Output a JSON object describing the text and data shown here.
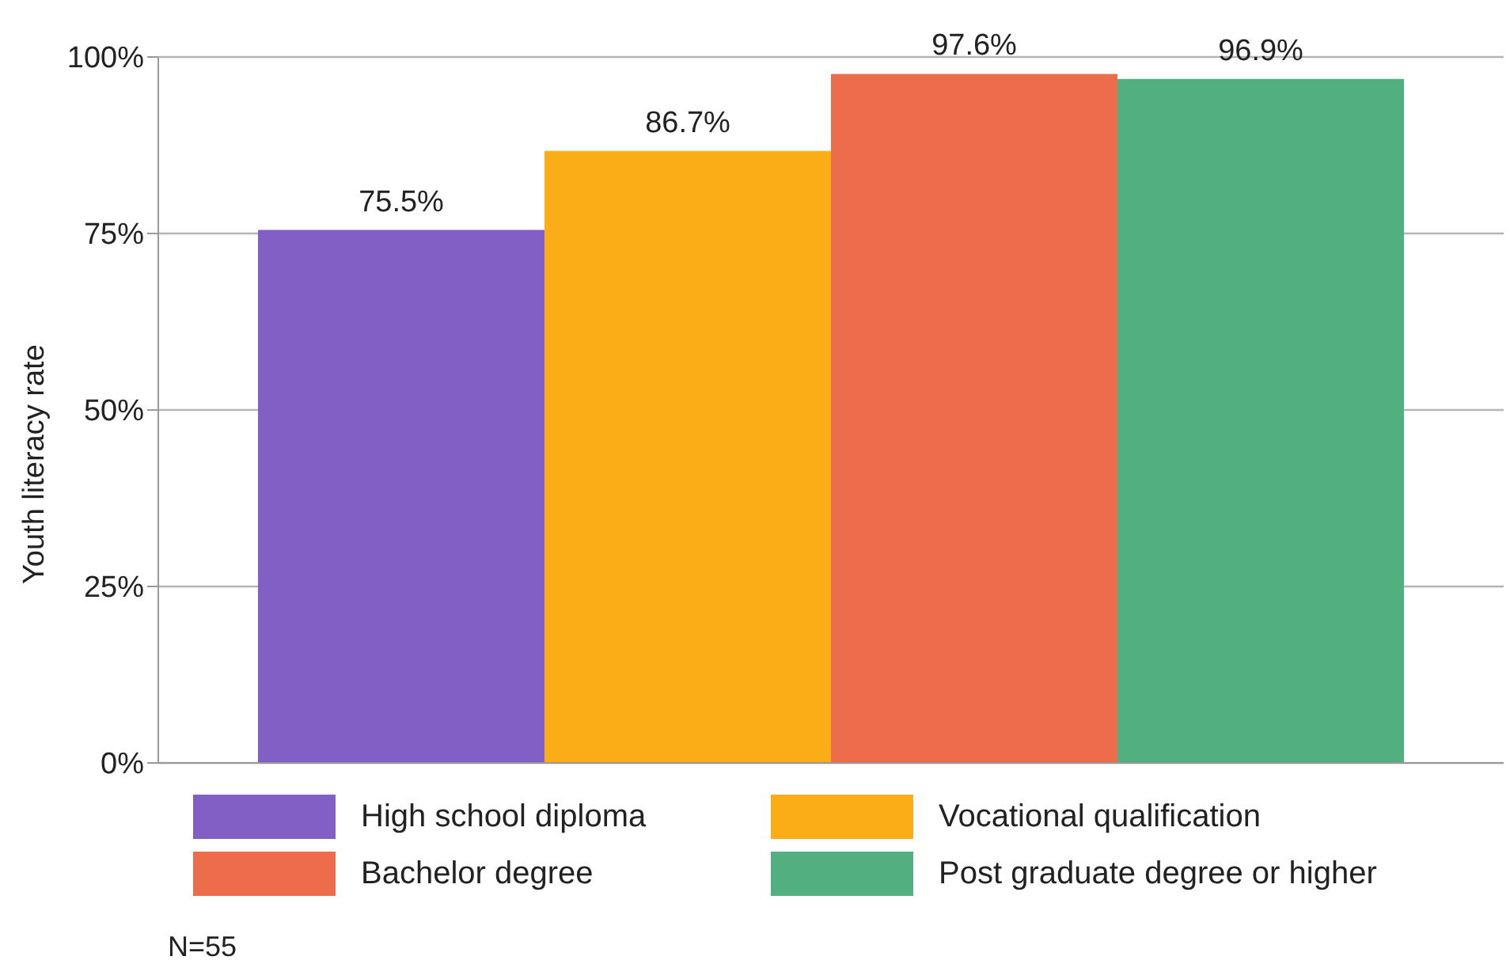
{
  "chart_data": {
    "type": "bar",
    "ylabel": "Youth literacy rate",
    "categories": [
      null
    ],
    "series": [
      {
        "name": "High school diploma",
        "color": "#825fc5",
        "values": [
          75.5
        ],
        "value_labels": [
          "75.5%"
        ]
      },
      {
        "name": "Vocational qualification",
        "color": "#fbad18",
        "values": [
          86.7
        ],
        "value_labels": [
          "86.7%"
        ]
      },
      {
        "name": "Bachelor degree",
        "color": "#ed6c4b",
        "values": [
          97.6
        ],
        "value_labels": [
          "97.6%"
        ]
      },
      {
        "name": "Post graduate degree or higher",
        "color": "#52af7f",
        "values": [
          96.9
        ],
        "value_labels": [
          "96.9%"
        ]
      }
    ],
    "ylim": [
      0,
      100
    ],
    "yticks": [
      {
        "value": 0,
        "label": "0%"
      },
      {
        "value": 25,
        "label": "25%"
      },
      {
        "value": 50,
        "label": "50%"
      },
      {
        "value": 75,
        "label": "75%"
      },
      {
        "value": 100,
        "label": "100%"
      }
    ],
    "grid": "y",
    "legend": "bottom",
    "annotations": [
      "N=55"
    ]
  }
}
